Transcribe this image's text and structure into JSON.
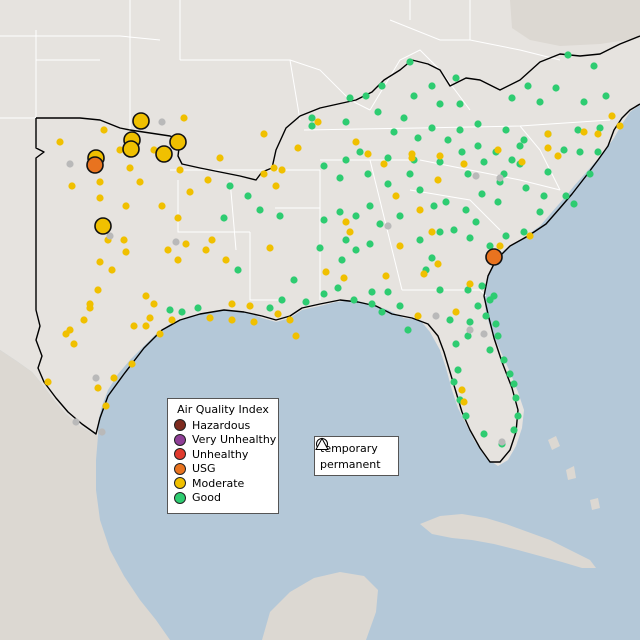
{
  "colors": {
    "ocean": "#b4c8d8",
    "land_us": "#e6e3df",
    "land_other": "#dcd8d2",
    "state_border": "#ffffff",
    "region_border": "#000000",
    "Hazardous": "#7e2b1f",
    "Very Unhealthy": "#8f3f97",
    "Unhealthy": "#e03a2e",
    "USG": "#e8731f",
    "Moderate": "#f0c000",
    "Good": "#2ecc71",
    "No data": "#b9b9b9"
  },
  "aqi_legend": {
    "title": "Air Quality Index",
    "items": [
      {
        "label": "Hazardous",
        "color": "#7e2b1f"
      },
      {
        "label": "Very Unhealthy",
        "color": "#8f3f97"
      },
      {
        "label": "Unhealthy",
        "color": "#e03a2e"
      },
      {
        "label": "USG",
        "color": "#e8731f"
      },
      {
        "label": "Moderate",
        "color": "#f0c000"
      },
      {
        "label": "Good",
        "color": "#2ecc71"
      }
    ]
  },
  "shape_legend": {
    "items": [
      {
        "label": "temporary",
        "icon": "circle-icon"
      },
      {
        "label": "permanent",
        "icon": "triangle-icon"
      }
    ]
  }
}
